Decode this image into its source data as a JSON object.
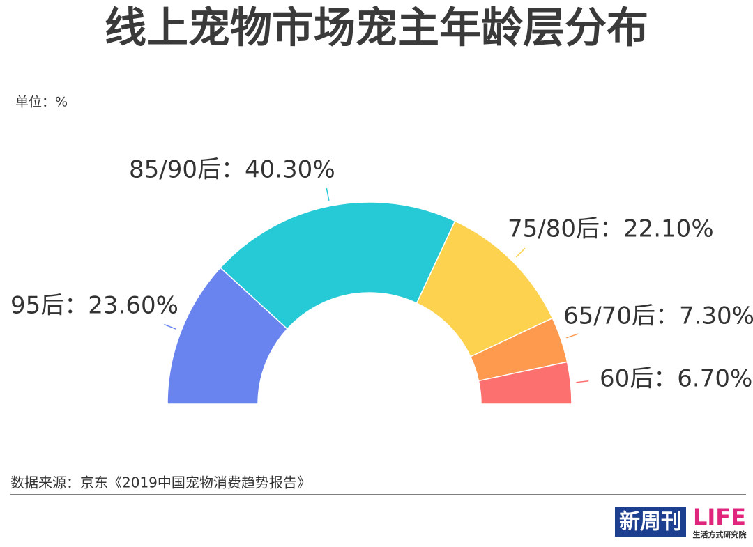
{
  "chart_data": {
    "type": "half-donut",
    "title": "线上宠物市场宠主年龄层分布",
    "unit_note": "单位：%",
    "value_labels": [
      "95后：23.60%",
      "85/90后：40.30%",
      "75/80后：22.10%",
      "65/70后：7.30%",
      "60后：6.70%"
    ],
    "values": [
      23.6,
      40.3,
      22.1,
      7.3,
      6.7
    ],
    "colors": [
      "#6a84ef",
      "#26cad6",
      "#fdd24f",
      "#fd9a4e",
      "#fd7070"
    ],
    "source": "数据来源：京东《2019中国宠物消费趋势报告》"
  },
  "footer": {
    "logo_left": "新周刊",
    "logo_right": "LIFE",
    "logo_right_sub": "生活方式研究院"
  }
}
